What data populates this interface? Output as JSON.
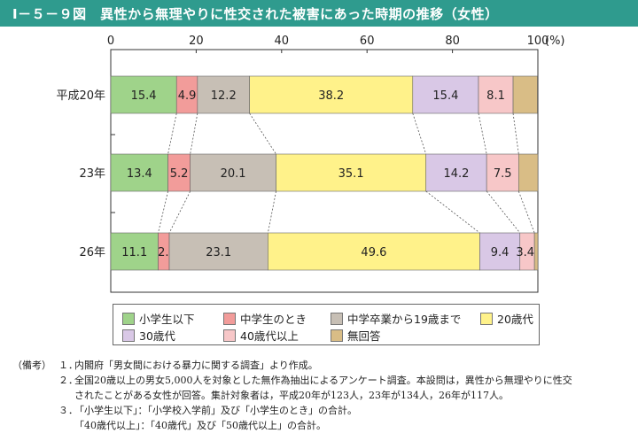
{
  "title": "Ⅰ－５－９図　異性から無理やりに性交された被害にあった時期の推移（女性）",
  "chart_data": {
    "type": "bar",
    "orientation": "horizontal",
    "stacked": true,
    "title": "異性から無理やりに性交された被害にあった時期の推移（女性）",
    "xlim": [
      0,
      100
    ],
    "xticks": [
      "0",
      "20",
      "40",
      "60",
      "80",
      "100"
    ],
    "x_unit": "(%)",
    "categories": [
      "平成20年",
      "23年",
      "26年"
    ],
    "series": [
      {
        "name": "小学生以下",
        "color": "#9fd38a",
        "values": [
          15.4,
          13.4,
          11.1
        ],
        "labels": [
          "15.4",
          "13.4",
          "11.1"
        ]
      },
      {
        "name": "中学生のとき",
        "color": "#f29c9a",
        "values": [
          4.9,
          5.2,
          2.6
        ],
        "labels": [
          "4.9",
          "5.2",
          "2.6"
        ]
      },
      {
        "name": "中学卒業から19歳まで",
        "color": "#c7bfb5",
        "values": [
          12.2,
          20.1,
          23.1
        ],
        "labels": [
          "12.2",
          "20.1",
          "23.1"
        ]
      },
      {
        "name": "20歳代",
        "color": "#fff28a",
        "values": [
          38.2,
          35.1,
          49.6
        ],
        "labels": [
          "38.2",
          "35.1",
          "49.6"
        ]
      },
      {
        "name": "30歳代",
        "color": "#d9c8e6",
        "values": [
          15.4,
          14.2,
          9.4
        ],
        "labels": [
          "15.4",
          "14.2",
          "9.4"
        ]
      },
      {
        "name": "40歳代以上",
        "color": "#f7c7c8",
        "values": [
          8.1,
          7.5,
          3.4
        ],
        "labels": [
          "8.1",
          "7.5",
          "3.4"
        ]
      },
      {
        "name": "無回答",
        "color": "#d9bd86",
        "values": [
          5.7,
          4.5,
          0.8
        ],
        "labels": [
          "",
          "",
          ""
        ]
      }
    ],
    "legend": "bottom"
  },
  "legend": {
    "items": [
      {
        "label": "小学生以下",
        "color": "#9fd38a"
      },
      {
        "label": "中学生のとき",
        "color": "#f29c9a"
      },
      {
        "label": "中学卒業から19歳まで",
        "color": "#c7bfb5"
      },
      {
        "label": "20歳代",
        "color": "#fff28a"
      },
      {
        "label": "30歳代",
        "color": "#d9c8e6"
      },
      {
        "label": "40歳代以上",
        "color": "#f7c7c8"
      },
      {
        "label": "無回答",
        "color": "#d9bd86"
      }
    ]
  },
  "notes": {
    "lead": "（備考）",
    "items": [
      {
        "num": "１．",
        "lines": [
          "内閣府「男女間における暴力に関する調査」より作成。"
        ]
      },
      {
        "num": "２．",
        "lines": [
          "全国20歳以上の男女5,000人を対象とした無作為抽出によるアンケート調査。本設問は，異性から無理やりに性交",
          "されたことがある女性が回答。集計対象者は，平成20年が123人，23年が134人，26年が117人。"
        ]
      },
      {
        "num": "３．",
        "lines": [
          "「小学生以下」：「小学校入学前」及び「小学生のとき」の合計。",
          "「40歳代以上」：「40歳代」及び「50歳代以上」の合計。"
        ]
      }
    ]
  }
}
